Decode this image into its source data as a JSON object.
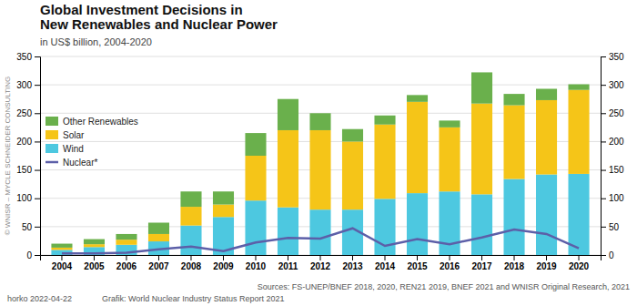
{
  "chart_data": {
    "type": "bar",
    "stacked": true,
    "title": [
      "Global Investment Decisions in",
      "New Renewables and Nuclear Power"
    ],
    "subtitle": "in US$ billion, 2004-2020",
    "categories": [
      "2004",
      "2005",
      "2006",
      "2007",
      "2008",
      "2009",
      "2010",
      "2011",
      "2012",
      "2013",
      "2014",
      "2015",
      "2016",
      "2017",
      "2018",
      "2019",
      "2020"
    ],
    "series": [
      {
        "name": "Wind",
        "type": "bar",
        "color": "#4dc8e0",
        "values": [
          9,
          14,
          18,
          24,
          52,
          67,
          96,
          84,
          80,
          80,
          99,
          109,
          112,
          107,
          134,
          142,
          143
        ]
      },
      {
        "name": "Solar",
        "type": "bar",
        "color": "#f5c518",
        "values": [
          4,
          5,
          9,
          13,
          33,
          22,
          79,
          136,
          140,
          120,
          131,
          161,
          113,
          160,
          130,
          131,
          148
        ]
      },
      {
        "name": "Other Renewables",
        "type": "bar",
        "color": "#6ab04c",
        "values": [
          7,
          9,
          10,
          20,
          27,
          23,
          40,
          55,
          30,
          22,
          16,
          12,
          12,
          55,
          20,
          20,
          10
        ]
      },
      {
        "name": "Nuclear*",
        "type": "line",
        "axis": "y2",
        "color": "#5c5fa8",
        "values": [
          3,
          3,
          4,
          10,
          15,
          7,
          22,
          30,
          29,
          47,
          16,
          28,
          19,
          31,
          45,
          37,
          12
        ]
      }
    ],
    "ylim": [
      0,
      350
    ],
    "yticks": [
      0,
      50,
      100,
      150,
      200,
      250,
      300,
      350
    ],
    "y2lim": [
      0,
      350
    ],
    "y2ticks": [
      0,
      50,
      100,
      150,
      200,
      250,
      300,
      350
    ],
    "grid": true,
    "legend": "left",
    "annotations": [
      "horko 2022-04-22",
      "Grafik: World Nuclear Industry Status Report 2021",
      "Sources: FS-UNEP/BNEF 2018, 2020, REN21 2019, BNEF 2021 and WNISR Original Research, 2021",
      "© WNISR – MYCLE SCHNEIDER CONSULTING"
    ]
  }
}
